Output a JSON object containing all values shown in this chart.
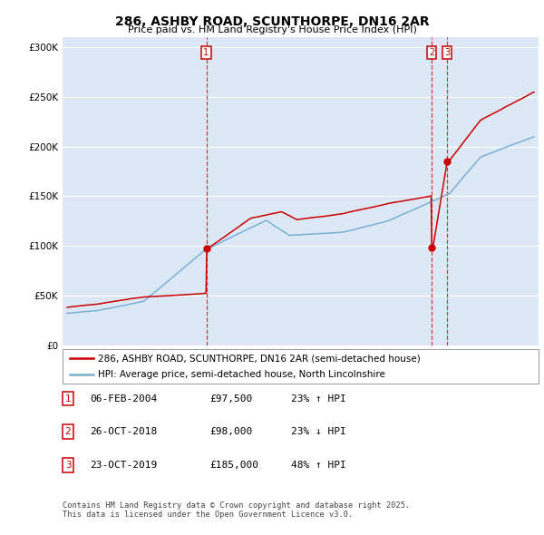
{
  "title1": "286, ASHBY ROAD, SCUNTHORPE, DN16 2AR",
  "title2": "Price paid vs. HM Land Registry's House Price Index (HPI)",
  "legend_line1": "286, ASHBY ROAD, SCUNTHORPE, DN16 2AR (semi-detached house)",
  "legend_line2": "HPI: Average price, semi-detached house, North Lincolnshire",
  "footnote1": "Contains HM Land Registry data © Crown copyright and database right 2025.",
  "footnote2": "This data is licensed under the Open Government Licence v3.0.",
  "sale_events": [
    {
      "label": "1",
      "x_plot": 2004.09,
      "price": 97500
    },
    {
      "label": "2",
      "x_plot": 2018.82,
      "price": 98000
    },
    {
      "label": "3",
      "x_plot": 2019.81,
      "price": 185000
    }
  ],
  "sale_table": [
    {
      "num": "1",
      "date": "06-FEB-2004",
      "price": "£97,500",
      "pct": "23% ↑ HPI"
    },
    {
      "num": "2",
      "date": "26-OCT-2018",
      "price": "£98,000",
      "pct": "23% ↓ HPI"
    },
    {
      "num": "3",
      "date": "23-OCT-2019",
      "price": "£185,000",
      "pct": "48% ↑ HPI"
    }
  ],
  "red_color": "#cc0000",
  "blue_color": "#7ab0d4",
  "bg_color": "#dce8f5",
  "grid_color": "#ffffff",
  "ylim": [
    0,
    310000
  ],
  "yticks": [
    0,
    50000,
    100000,
    150000,
    200000,
    250000,
    300000
  ],
  "xlim_start": 1994.7,
  "xlim_end": 2025.8
}
